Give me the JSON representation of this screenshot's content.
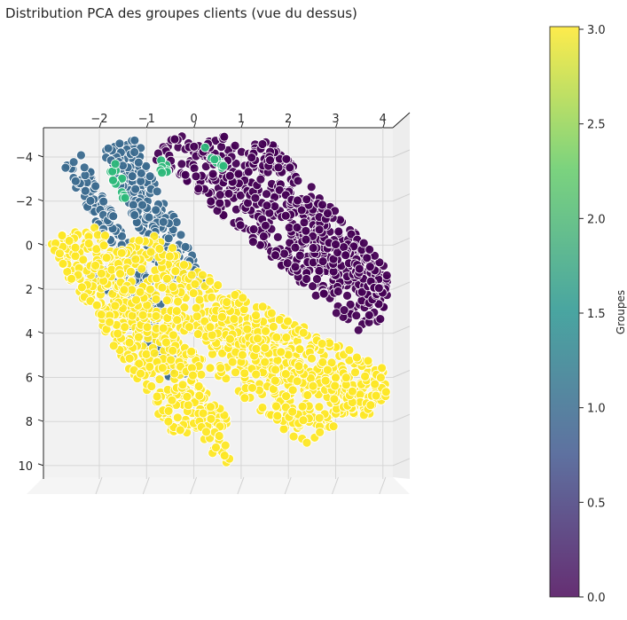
{
  "chart_data": {
    "type": "scatter",
    "title": "Distribution PCA des groupes clients (vue du dessus)",
    "view": "3d-top",
    "xlabel": "",
    "ylabel": "",
    "x_ticks": [
      "−2",
      "−1",
      "0",
      "1",
      "2",
      "3",
      "4"
    ],
    "x_tick_values": [
      -2,
      -1,
      0,
      1,
      2,
      3,
      4
    ],
    "y_ticks": [
      "−4",
      "−2",
      "0",
      "2",
      "4",
      "6",
      "8",
      "10"
    ],
    "y_tick_values": [
      -4,
      -2,
      0,
      2,
      4,
      6,
      8,
      10
    ],
    "xlim": [
      -3.1,
      4.3
    ],
    "ylim": [
      -5.2,
      11
    ],
    "grid": true,
    "colorbar": {
      "label": "Groupes",
      "ticks": [
        "0.0",
        "0.5",
        "1.0",
        "1.5",
        "2.0",
        "2.5",
        "3.0"
      ],
      "tick_values": [
        0,
        0.5,
        1.0,
        1.5,
        2.0,
        2.5,
        3.0
      ],
      "range": [
        0,
        3
      ],
      "colormap": "viridis",
      "colors": [
        "#440154",
        "#3b528b",
        "#21918c",
        "#5ec962",
        "#fde725"
      ]
    },
    "groups": [
      {
        "value": 0,
        "color": "#440154",
        "bands": [
          {
            "start": [
              -0.6,
              -4.7
            ],
            "end": [
              3.9,
              3.5
            ],
            "halfwidth": 0.45,
            "count": 300
          },
          {
            "start": [
              0.3,
              -4.7
            ],
            "end": [
              4.1,
              2.5
            ],
            "halfwidth": 0.35,
            "count": 220
          },
          {
            "start": [
              1.3,
              -4.6
            ],
            "end": [
              4.2,
              2.2
            ],
            "halfwidth": 0.3,
            "count": 200
          }
        ]
      },
      {
        "value": 1,
        "color": "#3b6a8e",
        "bands": [
          {
            "start": [
              -2.6,
              -4.0
            ],
            "end": [
              -0.7,
              3.6
            ],
            "halfwidth": 0.22,
            "count": 160
          },
          {
            "start": [
              -1.6,
              -4.6
            ],
            "end": [
              -0.1,
              2.0
            ],
            "halfwidth": 0.4,
            "count": 230
          },
          {
            "start": [
              -2.3,
              0.5
            ],
            "end": [
              -0.3,
              6.0
            ],
            "halfwidth": 0.18,
            "count": 90
          }
        ]
      },
      {
        "value": 2,
        "color": "#2db87a",
        "bands": [
          {
            "start": [
              -1.7,
              -3.8
            ],
            "end": [
              -1.5,
              -2.1
            ],
            "halfwidth": 0.12,
            "count": 14
          },
          {
            "start": [
              -0.8,
              -4.0
            ],
            "end": [
              -0.6,
              -3.3
            ],
            "halfwidth": 0.1,
            "count": 8
          },
          {
            "start": [
              0.3,
              -4.5
            ],
            "end": [
              0.6,
              -3.5
            ],
            "halfwidth": 0.1,
            "count": 10
          }
        ]
      },
      {
        "value": 3,
        "color": "#fde725",
        "bands": [
          {
            "start": [
              -2.6,
              -0.6
            ],
            "end": [
              0.2,
              8.5
            ],
            "halfwidth": 0.6,
            "count": 420
          },
          {
            "start": [
              -1.6,
              0.2
            ],
            "end": [
              3.0,
              8.2
            ],
            "halfwidth": 0.8,
            "count": 500
          },
          {
            "start": [
              0.4,
              3.0
            ],
            "end": [
              4.1,
              7.0
            ],
            "halfwidth": 0.6,
            "count": 330
          },
          {
            "start": [
              -0.4,
              4.0
            ],
            "end": [
              0.6,
              10.0
            ],
            "halfwidth": 0.25,
            "count": 60
          }
        ]
      }
    ]
  }
}
